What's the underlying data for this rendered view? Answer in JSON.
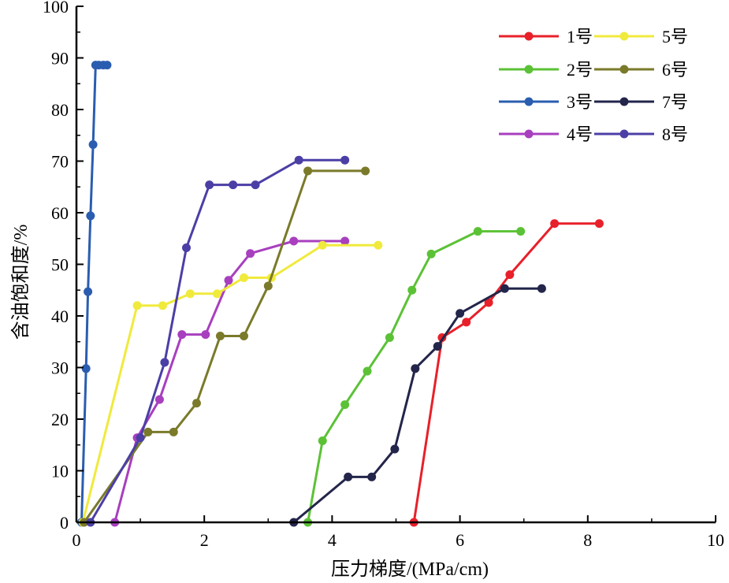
{
  "chart_data": {
    "type": "line",
    "title": "",
    "xlabel": "压力梯度/(MPa/cm)",
    "ylabel": "含油饱和度/%",
    "xlim": [
      0,
      10
    ],
    "ylim": [
      0,
      100
    ],
    "xticks": [
      0,
      2,
      4,
      6,
      8,
      10
    ],
    "yticks": [
      0,
      10,
      20,
      30,
      40,
      50,
      60,
      70,
      80,
      90,
      100
    ],
    "grid": false,
    "legend_position": "top-right",
    "series": [
      {
        "name": "1号",
        "color": "#e8202a",
        "x": [
          5.28,
          5.72,
          6.1,
          6.45,
          6.78,
          7.48,
          8.18
        ],
        "y": [
          0,
          35.8,
          38.8,
          42.6,
          48.0,
          57.9,
          57.9
        ]
      },
      {
        "name": "2号",
        "color": "#5bc236",
        "x": [
          3.62,
          3.85,
          4.2,
          4.55,
          4.9,
          5.25,
          5.55,
          6.28,
          6.95
        ],
        "y": [
          0,
          15.8,
          22.8,
          29.3,
          35.8,
          45.0,
          52.0,
          56.4,
          56.4
        ]
      },
      {
        "name": "3号",
        "color": "#2a5db0",
        "x": [
          0.08,
          0.15,
          0.18,
          0.22,
          0.26,
          0.3,
          0.35,
          0.42,
          0.48
        ],
        "y": [
          0,
          29.8,
          44.7,
          59.4,
          73.2,
          88.6,
          88.6,
          88.6,
          88.6
        ]
      },
      {
        "name": "4号",
        "color": "#a83fbf",
        "x": [
          0.6,
          0.95,
          1.3,
          1.65,
          2.02,
          2.38,
          2.72,
          3.4,
          4.2
        ],
        "y": [
          0,
          16.4,
          23.8,
          36.4,
          36.4,
          46.9,
          52.1,
          54.5,
          54.5
        ]
      },
      {
        "name": "5号",
        "color": "#f0ea3c",
        "x": [
          0.1,
          0.95,
          1.35,
          1.78,
          2.2,
          2.62,
          3.05,
          3.85,
          4.72
        ],
        "y": [
          0,
          42.0,
          42.0,
          44.3,
          44.3,
          47.4,
          47.4,
          53.7,
          53.7
        ]
      },
      {
        "name": "6号",
        "color": "#7a7a2a",
        "x": [
          0.12,
          1.12,
          1.52,
          1.88,
          2.25,
          2.62,
          3.0,
          3.62,
          4.52
        ],
        "y": [
          0,
          17.5,
          17.5,
          23.1,
          36.1,
          36.1,
          45.8,
          68.1,
          68.1
        ]
      },
      {
        "name": "7号",
        "color": "#23254a",
        "x": [
          3.4,
          4.25,
          4.62,
          4.98,
          5.3,
          5.65,
          6.0,
          6.7,
          7.28
        ],
        "y": [
          0,
          8.8,
          8.8,
          14.2,
          29.8,
          34.1,
          40.5,
          45.3,
          45.3
        ]
      },
      {
        "name": "8号",
        "color": "#4b3fa6",
        "x": [
          0.22,
          1.0,
          1.38,
          1.72,
          2.08,
          2.45,
          2.8,
          3.48,
          4.2
        ],
        "y": [
          0,
          16.4,
          31.0,
          53.2,
          65.4,
          65.4,
          65.4,
          70.2,
          70.2
        ]
      }
    ]
  }
}
